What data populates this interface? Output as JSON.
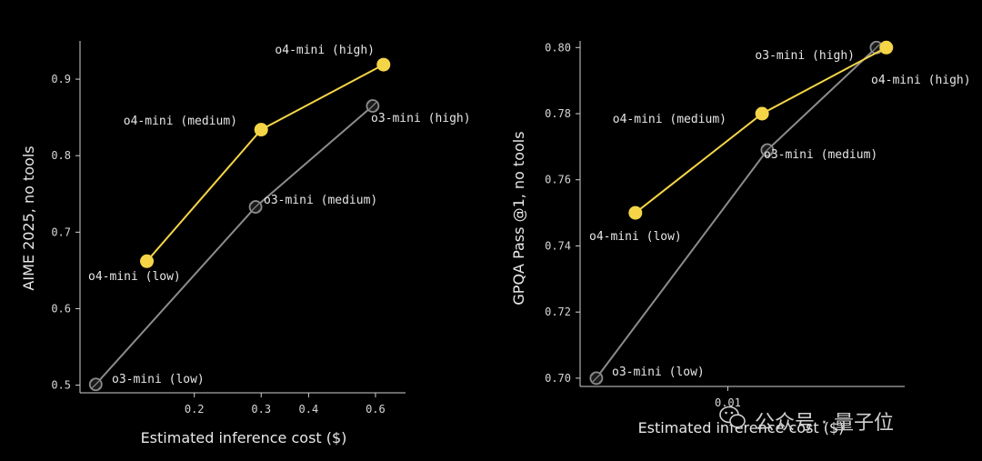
{
  "chart_data": [
    {
      "type": "line",
      "title": "",
      "xlabel": "Estimated inference cost ($)",
      "ylabel": "AIME 2025, no tools",
      "x_scale": "log",
      "xlim": [
        0.1,
        0.72
      ],
      "ylim": [
        0.49,
        0.95
      ],
      "x_ticks": [
        {
          "value": 0.2,
          "label": "0.2"
        },
        {
          "value": 0.3,
          "label": "0.3"
        },
        {
          "value": 0.4,
          "label": "0.4"
        },
        {
          "value": 0.6,
          "label": "0.6"
        }
      ],
      "y_ticks": [
        {
          "value": 0.5,
          "label": "0.5"
        },
        {
          "value": 0.6,
          "label": "0.6"
        },
        {
          "value": 0.7,
          "label": "0.7"
        },
        {
          "value": 0.8,
          "label": "0.8"
        },
        {
          "value": 0.9,
          "label": "0.9"
        }
      ],
      "series": [
        {
          "name": "o4-mini",
          "color": "#f5d547",
          "points": [
            {
              "x": 0.15,
              "y": 0.662,
              "label": "o4-mini (low)"
            },
            {
              "x": 0.3,
              "y": 0.834,
              "label": "o4-mini (medium)"
            },
            {
              "x": 0.63,
              "y": 0.919,
              "label": "o4-mini (high)"
            }
          ]
        },
        {
          "name": "o3-mini",
          "color": "#8c8c8c",
          "points": [
            {
              "x": 0.11,
              "y": 0.501,
              "label": "o3-mini (low)"
            },
            {
              "x": 0.29,
              "y": 0.733,
              "label": "o3-mini (medium)"
            },
            {
              "x": 0.59,
              "y": 0.865,
              "label": "o3-mini (high)"
            }
          ]
        }
      ]
    },
    {
      "type": "line",
      "title": "",
      "xlabel": "Estimated inference cost ($)",
      "ylabel": "GPQA Pass @1, no tools",
      "x_scale": "log",
      "xlim": [
        0.0049,
        0.0235
      ],
      "ylim": [
        0.6975,
        0.802
      ],
      "x_ticks": [
        {
          "value": 0.01,
          "label": "0.01"
        }
      ],
      "y_ticks": [
        {
          "value": 0.7,
          "label": "0.70"
        },
        {
          "value": 0.72,
          "label": "0.72"
        },
        {
          "value": 0.74,
          "label": "0.74"
        },
        {
          "value": 0.76,
          "label": "0.76"
        },
        {
          "value": 0.78,
          "label": "0.78"
        },
        {
          "value": 0.8,
          "label": "0.80"
        }
      ],
      "series": [
        {
          "name": "o4-mini",
          "color": "#f5d547",
          "points": [
            {
              "x": 0.0064,
              "y": 0.75,
              "label": "o4-mini (low)"
            },
            {
              "x": 0.0118,
              "y": 0.78,
              "label": "o4-mini (medium)"
            },
            {
              "x": 0.0215,
              "y": 0.8,
              "label": "o4-mini (high)"
            }
          ]
        },
        {
          "name": "o3-mini",
          "color": "#8c8c8c",
          "points": [
            {
              "x": 0.0053,
              "y": 0.7,
              "label": "o3-mini (low)"
            },
            {
              "x": 0.0121,
              "y": 0.769,
              "label": "o3-mini (medium)"
            },
            {
              "x": 0.0205,
              "y": 0.8,
              "label": "o3-mini (high)"
            }
          ]
        }
      ]
    }
  ],
  "watermark": {
    "text": "公众号 · 量子位",
    "icon": "wechat-icon"
  }
}
